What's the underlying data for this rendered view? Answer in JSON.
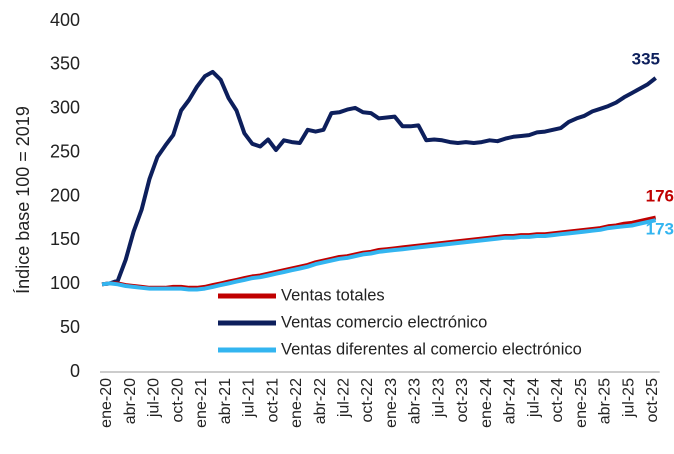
{
  "chart_data": {
    "type": "line",
    "y_label": "Índice base 100 = 2019",
    "categories": [
      "ene-20",
      null,
      null,
      "abr-20",
      null,
      null,
      "jul-20",
      null,
      null,
      "oct-20",
      null,
      null,
      "ene-21",
      null,
      null,
      "abr-21",
      null,
      null,
      "jul-21",
      null,
      null,
      "oct-21",
      null,
      null,
      "ene-22",
      null,
      null,
      "abr-22",
      null,
      null,
      "jul-22",
      null,
      null,
      "oct-22",
      null,
      null,
      "ene-23",
      null,
      null,
      "abr-23",
      null,
      null,
      "jul-23",
      null,
      null,
      "oct-23",
      null,
      null,
      "ene-24",
      null,
      null,
      "abr-24",
      null,
      null,
      "jul-24",
      null,
      null,
      "oct-24",
      null,
      null,
      "ene-25",
      null,
      null,
      "abr-25",
      null,
      null,
      "jul-25",
      null,
      null,
      "oct-25",
      null
    ],
    "series": [
      {
        "name": "Ventas totales",
        "color": "#c00000",
        "values": [
          100,
          101,
          101,
          99,
          98,
          97,
          96,
          96,
          96,
          97,
          97,
          96,
          96,
          97,
          99,
          101,
          103,
          105,
          107,
          109,
          110,
          112,
          114,
          116,
          118,
          120,
          122,
          125,
          127,
          129,
          131,
          132,
          134,
          136,
          137,
          139,
          140,
          141,
          142,
          143,
          144,
          145,
          146,
          147,
          148,
          149,
          150,
          151,
          152,
          153,
          154,
          155,
          155,
          156,
          156,
          157,
          157,
          158,
          159,
          160,
          161,
          162,
          163,
          164,
          166,
          167,
          169,
          170,
          172,
          174,
          176
        ]
      },
      {
        "name": "Ventas comercio electrónico",
        "color": "#0d1f5c",
        "values": [
          100,
          101,
          104,
          128,
          160,
          185,
          220,
          245,
          258,
          270,
          298,
          310,
          325,
          337,
          342,
          333,
          312,
          298,
          272,
          260,
          257,
          265,
          253,
          264,
          262,
          261,
          276,
          274,
          276,
          295,
          296,
          299,
          301,
          296,
          295,
          289,
          290,
          291,
          280,
          280,
          281,
          264,
          265,
          264,
          262,
          261,
          262,
          261,
          262,
          264,
          263,
          266,
          268,
          269,
          270,
          273,
          274,
          276,
          278,
          285,
          289,
          292,
          297,
          300,
          303,
          307,
          313,
          318,
          323,
          328,
          335
        ]
      },
      {
        "name": "Ventas diferentes al comercio electrónico",
        "color": "#33b5f0",
        "values": [
          100,
          101,
          100,
          98,
          97,
          96,
          95,
          95,
          95,
          95,
          95,
          94,
          94,
          95,
          97,
          99,
          101,
          103,
          105,
          107,
          108,
          110,
          112,
          114,
          116,
          118,
          120,
          123,
          125,
          127,
          129,
          130,
          132,
          134,
          135,
          137,
          138,
          139,
          140,
          141,
          142,
          143,
          144,
          145,
          146,
          147,
          148,
          149,
          150,
          151,
          152,
          153,
          153,
          154,
          154,
          155,
          155,
          156,
          157,
          158,
          159,
          160,
          161,
          162,
          164,
          165,
          166,
          167,
          169,
          171,
          173
        ]
      }
    ],
    "ylim": [
      0,
      400
    ],
    "yticks": [
      0,
      50,
      100,
      150,
      200,
      250,
      300,
      350,
      400
    ],
    "grid": false
  }
}
